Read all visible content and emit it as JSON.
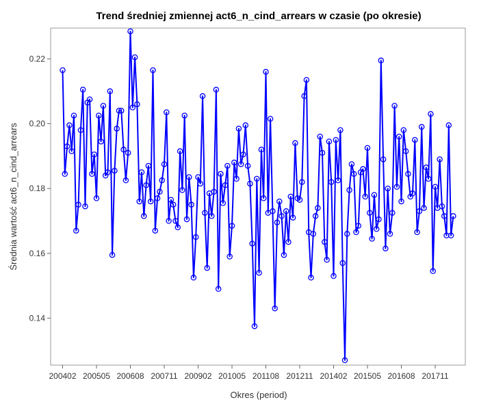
{
  "chart_data": {
    "type": "line",
    "title": "Trend średniej zmiennej act6_n_cind_arrears w czasie (po okresie)",
    "xlabel": "Okres (period)",
    "ylabel": "Średnia wartość act6_n_cind_arrears",
    "ylim": [
      0.1255,
      0.2295
    ],
    "yticks": [
      "0.14",
      "0.16",
      "0.18",
      "0.20",
      "0.22"
    ],
    "xticks": [
      "200402",
      "200505",
      "200608",
      "200711",
      "200902",
      "201005",
      "201108",
      "201211",
      "201402",
      "201505",
      "201608",
      "201711"
    ],
    "legend": "none",
    "grid": false,
    "line_color": "#0000ff",
    "marker": "open-circle",
    "series": [
      {
        "values": [
          0.2165,
          0.1845,
          0.193,
          0.1995,
          0.1915,
          0.2025,
          0.167,
          0.175,
          0.198,
          0.2105,
          0.1745,
          0.2065,
          0.2075,
          0.1845,
          0.1905,
          0.177,
          0.2025,
          0.1945,
          0.2055,
          0.184,
          0.185,
          0.21,
          0.1595,
          0.1855,
          0.1985,
          0.204,
          0.204,
          0.192,
          0.1825,
          0.191,
          0.2285,
          0.205,
          0.2205,
          0.206,
          0.176,
          0.185,
          0.1715,
          0.181,
          0.187,
          0.176,
          0.2165,
          0.167,
          0.177,
          0.179,
          0.1825,
          0.1875,
          0.2035,
          0.17,
          0.1765,
          0.175,
          0.17,
          0.168,
          0.1915,
          0.1795,
          0.2025,
          0.1705,
          0.1835,
          0.175,
          0.1525,
          0.165,
          0.1835,
          0.1815,
          0.2085,
          0.1725,
          0.1555,
          0.1785,
          0.1715,
          0.179,
          0.2105,
          0.149,
          0.1845,
          0.1755,
          0.181,
          0.187,
          0.159,
          0.1685,
          0.188,
          0.183,
          0.1985,
          0.1875,
          0.1905,
          0.1995,
          0.187,
          0.1815,
          0.163,
          0.1375,
          0.183,
          0.154,
          0.192,
          0.177,
          0.216,
          0.1725,
          0.2015,
          0.173,
          0.143,
          0.1695,
          0.176,
          0.1715,
          0.1595,
          0.173,
          0.1635,
          0.1775,
          0.171,
          0.194,
          0.177,
          0.1765,
          0.182,
          0.2085,
          0.2135,
          0.1665,
          0.1525,
          0.166,
          0.1715,
          0.174,
          0.196,
          0.191,
          0.1635,
          0.158,
          0.1945,
          0.182,
          0.153,
          0.195,
          0.1825,
          0.198,
          0.157,
          0.127,
          0.166,
          0.1795,
          0.1875,
          0.1845,
          0.1665,
          0.1685,
          0.185,
          0.186,
          0.1775,
          0.1925,
          0.1725,
          0.1645,
          0.178,
          0.1675,
          0.1705,
          0.2195,
          0.189,
          0.1615,
          0.18,
          0.166,
          0.1725,
          0.2055,
          0.1805,
          0.196,
          0.176,
          0.198,
          0.1915,
          0.1845,
          0.1775,
          0.1785,
          0.195,
          0.1665,
          0.173,
          0.199,
          0.174,
          0.1865,
          0.183,
          0.203,
          0.1545,
          0.1805,
          0.174,
          0.189,
          0.1745,
          0.1715,
          0.1655,
          0.1995,
          0.1655,
          0.1715
        ]
      }
    ]
  }
}
